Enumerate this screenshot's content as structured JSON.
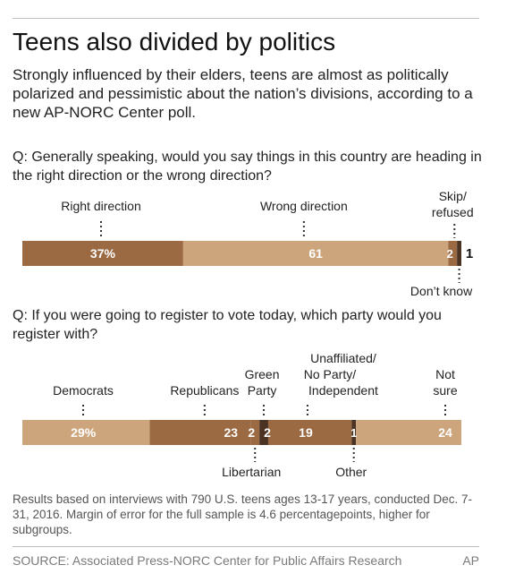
{
  "title": "Teens also divided by politics",
  "subtitle": "Strongly influenced by their elders, teens are almost as politically polarized and pessimistic about the nation’s divisions, according to a new AP-NORC Center poll.",
  "note": "Results based on interviews with 790 U.S. teens ages 13-17 years, conducted Dec. 7-31, 2016. Margin of error for the full sample is 4.6 percentagepoints, higher for subgroups.",
  "source": "SOURCE: Associated Press-NORC Center for Public Affairs Research",
  "credit": "AP",
  "colors": {
    "dark": "#9b6a43",
    "light": "#cda57d",
    "darkest": "#4b3324",
    "label_text": "#ffffff",
    "callout_text": "#222222"
  },
  "chart_data": [
    {
      "type": "bar",
      "orientation": "horizontal-stacked",
      "question": "Q: Generally speaking, would you say things in this country are heading in the right direction or the wrong direction?",
      "unit": "%",
      "segments": [
        {
          "name": "Right direction",
          "value": 37,
          "value_label": "37%",
          "color": "#9b6a43"
        },
        {
          "name": "Wrong direction",
          "value": 61,
          "value_label": "61",
          "color": "#cda57d"
        },
        {
          "name": "Skip/ refused",
          "value": 2,
          "value_label": "2",
          "color": "#9b6a43"
        },
        {
          "name": "Don’t know",
          "value": 1,
          "value_label": "1",
          "color": "#4b3324"
        }
      ]
    },
    {
      "type": "bar",
      "orientation": "horizontal-stacked",
      "question": "Q: If you were going to register to vote today, which party would you register with?",
      "unit": "%",
      "segments": [
        {
          "name": "Democrats",
          "value": 29,
          "value_label": "29%",
          "color": "#cda57d"
        },
        {
          "name": "Republicans",
          "value": 23,
          "value_label": "23",
          "color": "#9b6a43"
        },
        {
          "name": "Libertarian",
          "value": 2,
          "value_label": "2",
          "color": "#9b6a43"
        },
        {
          "name": "Green Party",
          "value": 2,
          "value_label": "2",
          "color": "#4b3324"
        },
        {
          "name": "Unaffiliated/ No Party/ Independent",
          "value": 19,
          "value_label": "19",
          "color": "#9b6a43"
        },
        {
          "name": "Other",
          "value": 1,
          "value_label": "1",
          "color": "#4b3324"
        },
        {
          "name": "Not sure",
          "value": 24,
          "value_label": "24",
          "color": "#cda57d"
        }
      ]
    }
  ]
}
